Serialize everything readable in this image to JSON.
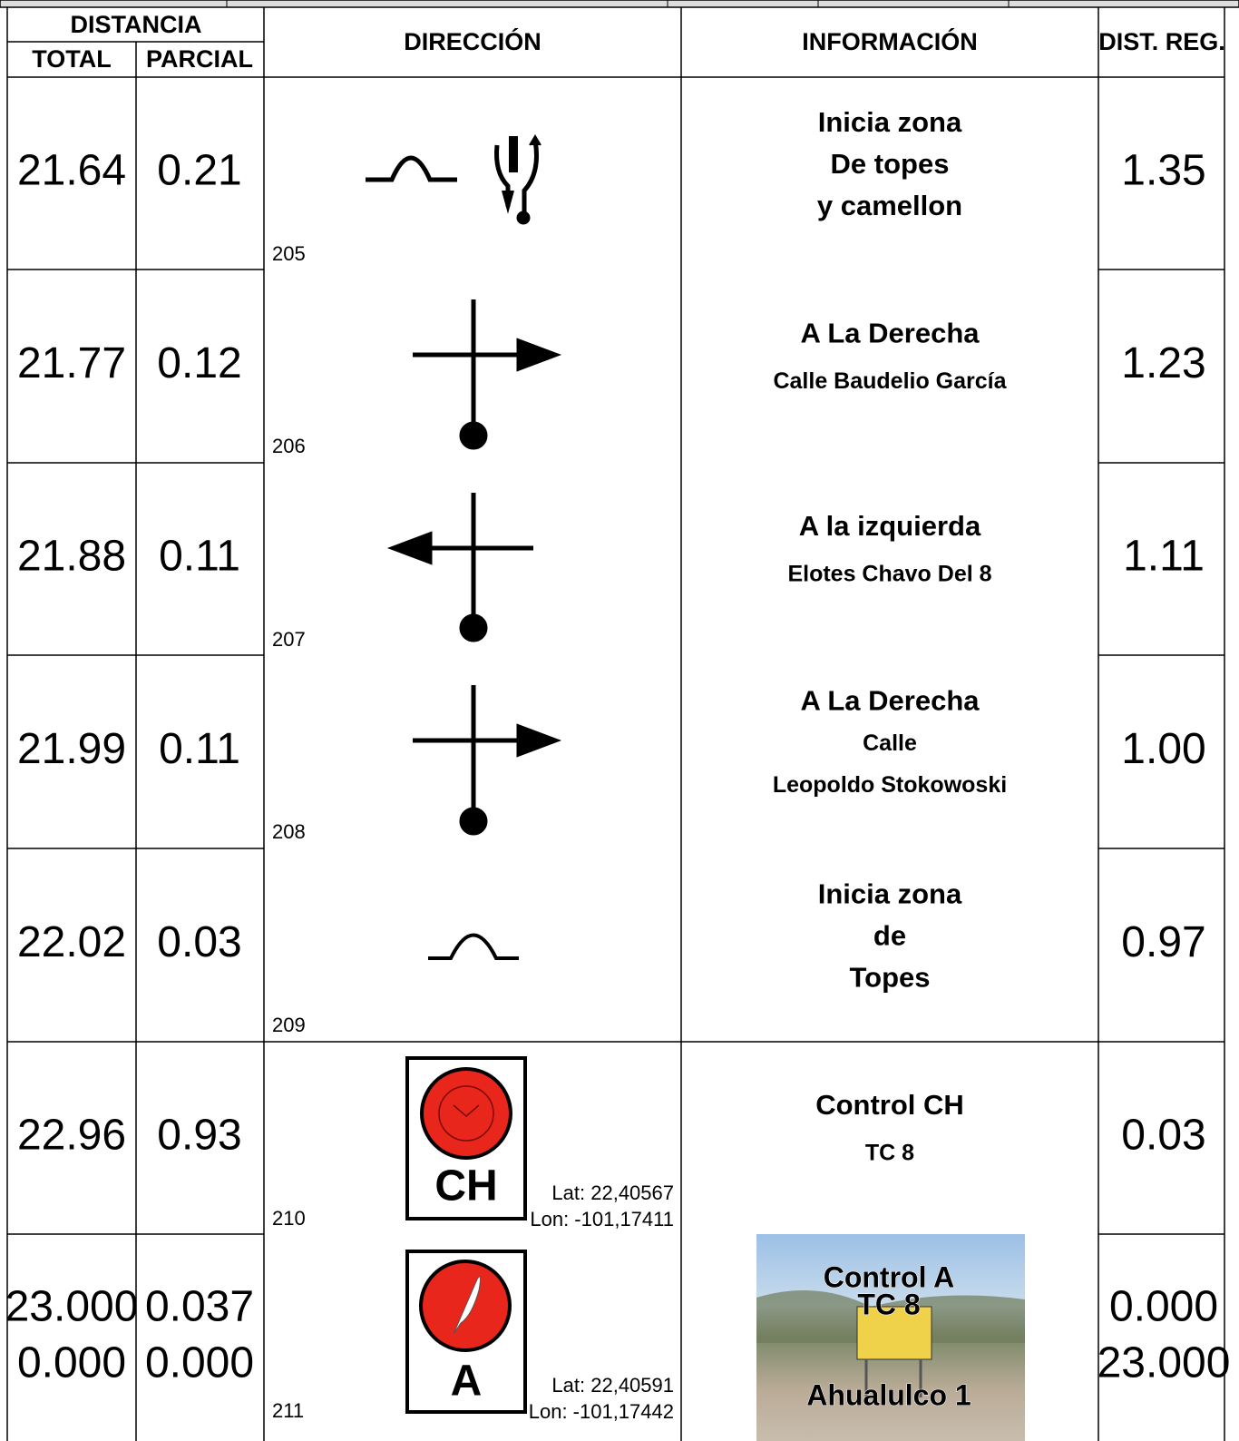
{
  "header": {
    "distancia": "DISTANCIA",
    "total": "TOTAL",
    "parcial": "PARCIAL",
    "direccion": "DIRECCIÓN",
    "informacion": "INFORMACIÓN",
    "dist_reg": "DIST. REG."
  },
  "rows": [
    {
      "total": [
        "21.64"
      ],
      "parcial": [
        "0.21"
      ],
      "number": "205",
      "info": [
        "Inicia zona",
        "De topes",
        "y camellon"
      ],
      "dist_reg": [
        "1.35"
      ]
    },
    {
      "total": [
        "21.77"
      ],
      "parcial": [
        "0.12"
      ],
      "number": "206",
      "info": [
        "A La Derecha",
        "Calle Baudelio García"
      ],
      "dist_reg": [
        "1.23"
      ]
    },
    {
      "total": [
        "21.88"
      ],
      "parcial": [
        "0.11"
      ],
      "number": "207",
      "info": [
        "A la izquierda",
        "Elotes Chavo Del 8"
      ],
      "dist_reg": [
        "1.11"
      ]
    },
    {
      "total": [
        "21.99"
      ],
      "parcial": [
        "0.11"
      ],
      "number": "208",
      "info": [
        "A La Derecha",
        "Calle",
        "Leopoldo Stokowoski"
      ],
      "dist_reg": [
        "1.00"
      ]
    },
    {
      "total": [
        "22.02"
      ],
      "parcial": [
        "0.03"
      ],
      "number": "209",
      "info": [
        "Inicia zona",
        "de",
        "Topes"
      ],
      "dist_reg": [
        "0.97"
      ]
    },
    {
      "total": [
        "22.96"
      ],
      "parcial": [
        "0.93"
      ],
      "number": "210",
      "info": [
        "Control CH",
        "TC 8"
      ],
      "dist_reg": [
        "0.03"
      ],
      "icon_label": "CH",
      "lat": "Lat: 22,40567",
      "lon": "Lon: -101,17411"
    },
    {
      "total": [
        "23.000",
        "0.000"
      ],
      "parcial": [
        "0.037",
        "0.000"
      ],
      "number": "211",
      "photo_text": [
        "Control A",
        "TC 8",
        "Ahualulco 1"
      ],
      "dist_reg": [
        "0.000",
        "23.000"
      ],
      "icon_label": "A",
      "lat": "Lat: 22,40591",
      "lon": "Lon: -101,17442"
    }
  ]
}
